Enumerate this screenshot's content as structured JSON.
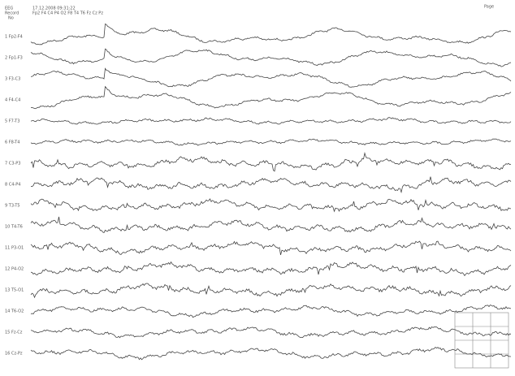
{
  "header": {
    "lines": [
      "EEG",
      "Record",
      "No",
      "17.12.2008 09:31:22",
      "Fp2 F4 C4 P4 O2 F8 T4 T6 Fz Cz Pz",
      "Page"
    ]
  },
  "channels": [
    "1 Fp2-F4",
    "2 Fp1-F3",
    "3 F3-C3",
    "4 F4-C4",
    "5 F7-T3",
    "6 F8-T4",
    "7 C3-P3",
    "8 C4-P4",
    "9 T3-T5",
    "10 T4-T6",
    "11 P3-O1",
    "12 P4-O2",
    "13 T5-O1",
    "14 T6-O2",
    "15 Fz-Cz",
    "16 Cz-Pz"
  ]
}
